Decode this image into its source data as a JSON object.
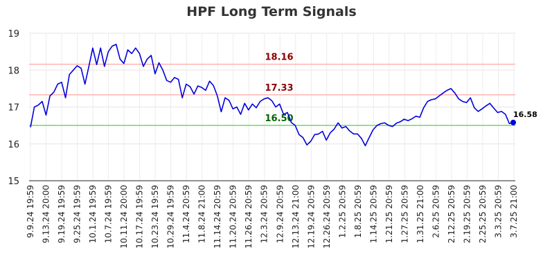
{
  "chart_data": {
    "type": "line",
    "title": "HPF Long Term Signals",
    "xlabel": "",
    "ylabel": "",
    "ylim": [
      15,
      19
    ],
    "yticks": [
      15,
      16,
      17,
      18,
      19
    ],
    "grid": true,
    "line_color": "#0000dd",
    "xtick_labels": [
      "9.9.24 19:59",
      "9.13.24 20:00",
      "9.19.24 19:59",
      "9.25.24 19:59",
      "10.1.24 19:59",
      "10.7.24 19:59",
      "10.11.24 20:00",
      "10.17.24 19:59",
      "10.23.24 19:59",
      "10.29.24 19:59",
      "11.4.24 20:59",
      "11.8.24 21:00",
      "11.14.24 20:59",
      "11.20.24 20:59",
      "11.26.24 20:59",
      "12.3.24 20:59",
      "12.9.24 20:59",
      "12.13.24 21:00",
      "12.19.24 20:59",
      "12.26.24 20:59",
      "1.2.25 20:59",
      "1.8.25 20:59",
      "1.14.25 20:59",
      "1.21.25 20:59",
      "1.27.25 20:59",
      "1.31.25 21:00",
      "2.6.25 20:59",
      "2.12.25 20:59",
      "2.19.25 20:59",
      "2.25.25 20:59",
      "3.3.25 20:59",
      "3.7.25 21:00"
    ],
    "levels": [
      {
        "label": "18.16",
        "value": 18.16,
        "line_color": "#ffb3b3",
        "label_color": "#8b0000"
      },
      {
        "label": "17.33",
        "value": 17.33,
        "line_color": "#ffb3b3",
        "label_color": "#8b0000"
      },
      {
        "label": "16.50",
        "value": 16.5,
        "line_color": "#66dd66",
        "label_color": "#006400"
      }
    ],
    "last_value_label": "16.58",
    "series": [
      {
        "values": [
          16.45,
          17.0,
          17.05,
          17.15,
          16.78,
          17.3,
          17.4,
          17.62,
          17.67,
          17.25,
          17.88,
          18.0,
          18.12,
          18.05,
          17.62,
          18.1,
          18.6,
          18.15,
          18.6,
          18.1,
          18.5,
          18.65,
          18.7,
          18.3,
          18.18,
          18.55,
          18.45,
          18.6,
          18.45,
          18.1,
          18.3,
          18.4,
          17.9,
          18.2,
          18.0,
          17.72,
          17.67,
          17.8,
          17.75,
          17.25,
          17.62,
          17.55,
          17.35,
          17.57,
          17.53,
          17.45,
          17.7,
          17.58,
          17.3,
          16.87,
          17.25,
          17.18,
          16.95,
          17.0,
          16.8,
          17.1,
          16.92,
          17.08,
          16.98,
          17.15,
          17.22,
          17.25,
          17.17,
          17.0,
          17.08,
          16.8,
          16.85,
          16.58,
          16.5,
          16.25,
          16.17,
          15.97,
          16.07,
          16.25,
          16.27,
          16.34,
          16.1,
          16.3,
          16.4,
          16.57,
          16.43,
          16.47,
          16.35,
          16.27,
          16.27,
          16.15,
          15.95,
          16.17,
          16.38,
          16.5,
          16.55,
          16.57,
          16.5,
          16.47,
          16.56,
          16.6,
          16.67,
          16.63,
          16.68,
          16.75,
          16.72,
          16.98,
          17.15,
          17.2,
          17.22,
          17.3,
          17.38,
          17.45,
          17.5,
          17.38,
          17.22,
          17.15,
          17.12,
          17.25,
          16.98,
          16.88,
          16.95,
          17.03,
          17.1,
          16.97,
          16.85,
          16.88,
          16.8,
          16.55,
          16.58
        ]
      }
    ]
  }
}
